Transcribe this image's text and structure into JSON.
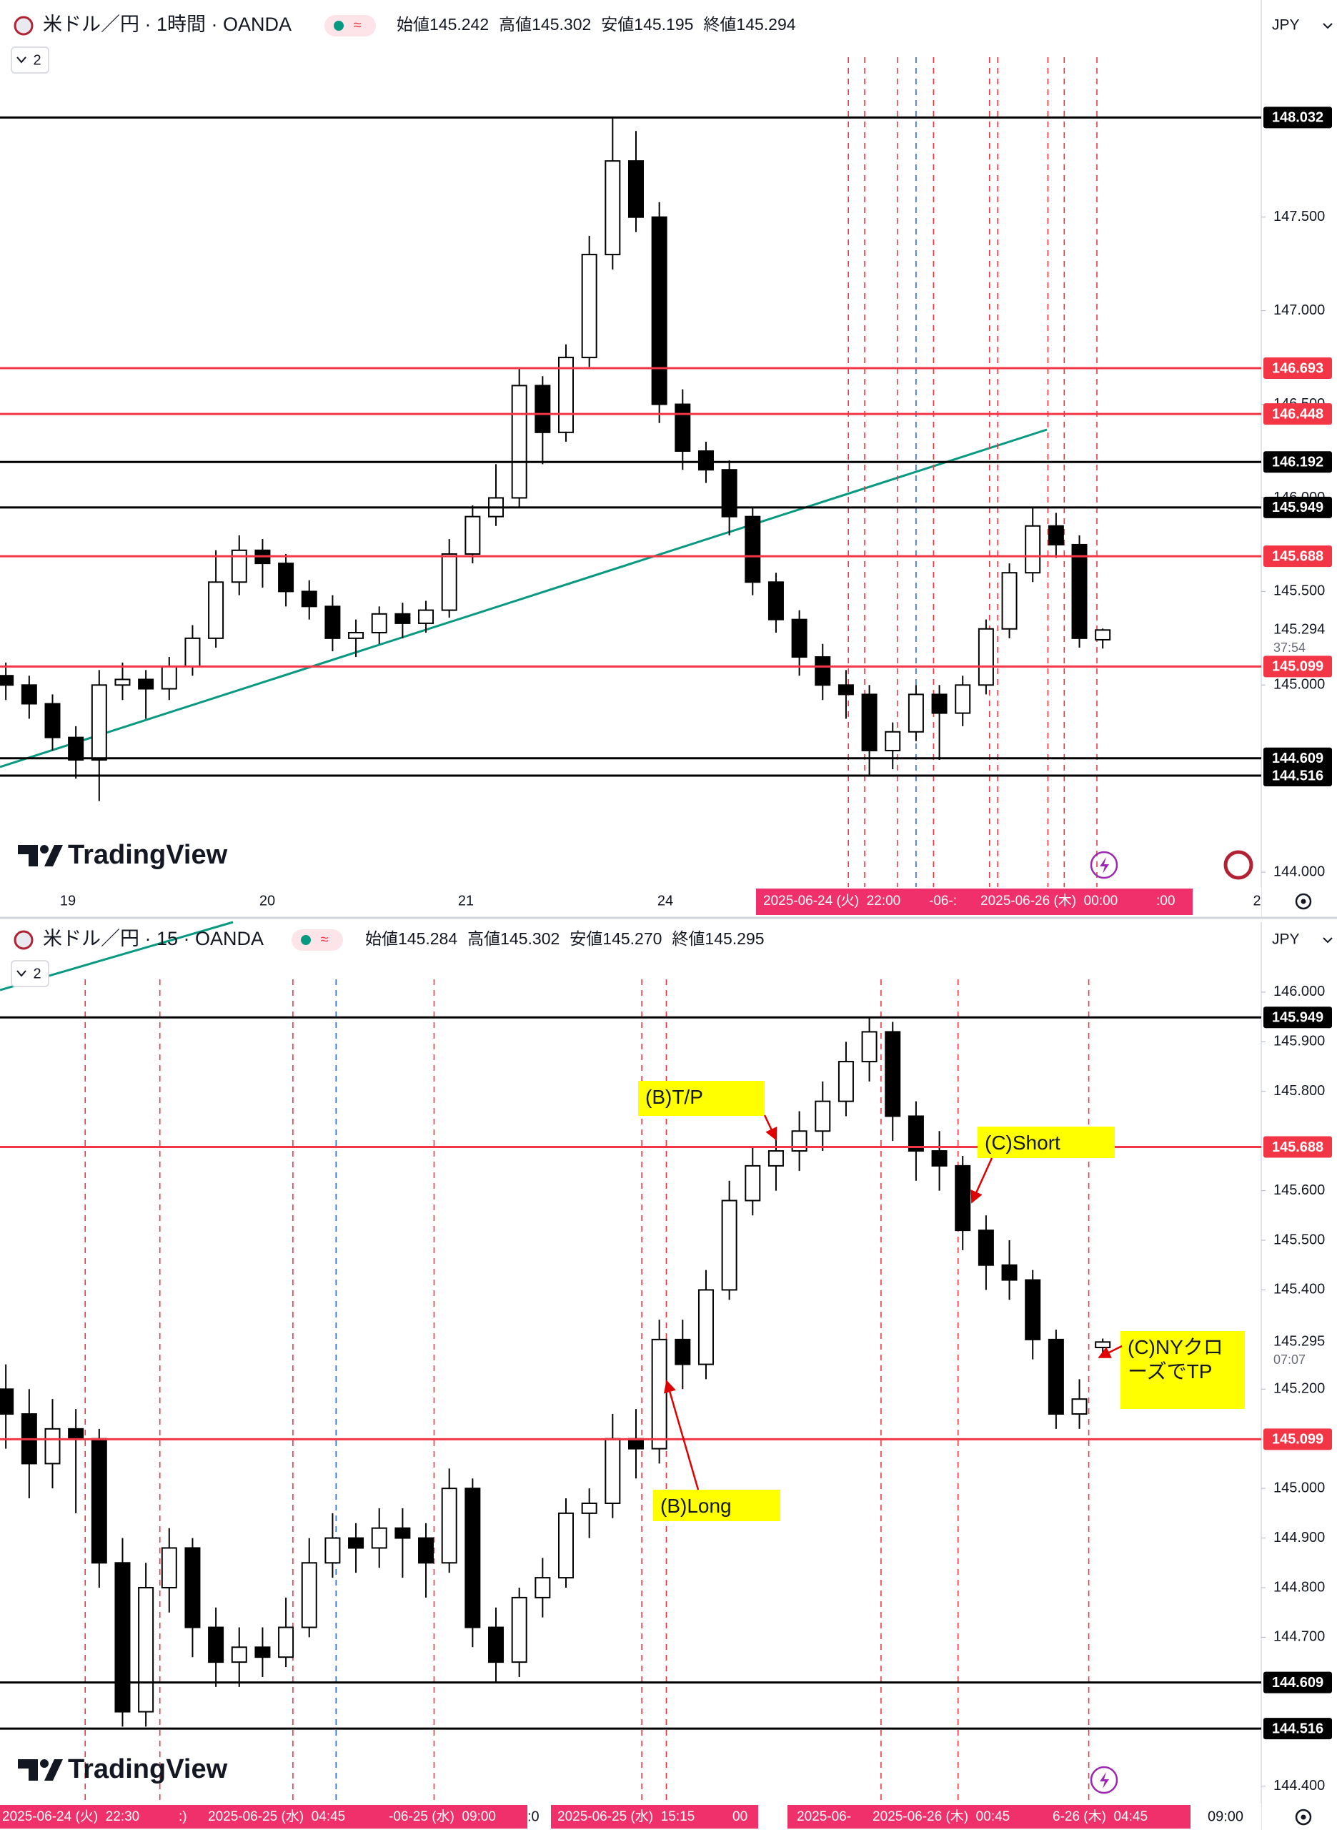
{
  "chart_data": [
    {
      "type": "candlestick",
      "symbol": "米ドル／円 · 1時間 · OANDA",
      "ohlc_labels": [
        "始値",
        "高値",
        "安値",
        "終値"
      ],
      "last_labels": [
        "145.242",
        "145.302",
        "145.195",
        "145.294"
      ],
      "countdown": "37:54",
      "indicator_count": "2",
      "currency": "JPY",
      "watermark": "TradingView",
      "ylim": [
        143.97,
        148.66
      ],
      "yticks": [
        {
          "value": 144,
          "label": "144.000"
        },
        {
          "value": 145,
          "label": "145.000"
        },
        {
          "value": 145.5,
          "label": "145.500"
        },
        {
          "value": 146,
          "label": "146.000"
        },
        {
          "value": 146.5,
          "label": "146.500"
        },
        {
          "value": 147,
          "label": "147.000"
        },
        {
          "value": 147.5,
          "label": "147.500"
        }
      ],
      "levels": [
        {
          "value": 148.032,
          "color": "#000000"
        },
        {
          "value": 146.693,
          "color": "#f23645"
        },
        {
          "value": 146.448,
          "color": "#f23645"
        },
        {
          "value": 146.192,
          "color": "#000000"
        },
        {
          "value": 145.949,
          "color": "#000000"
        },
        {
          "value": 145.688,
          "color": "#f23645"
        },
        {
          "value": 145.099,
          "color": "#f23645"
        },
        {
          "value": 144.609,
          "color": "#000000"
        },
        {
          "value": 144.516,
          "color": "#000000"
        }
      ],
      "x_labels": [
        "19",
        "20",
        "21",
        "24",
        "2"
      ],
      "time_highlights": [
        "2025-06-24 (火)  22:00",
        "-06-:",
        "2025-06-26 (木)  00:00",
        ":00"
      ],
      "candles": {
        "open": [
          145.05,
          145.0,
          144.9,
          144.72,
          144.6,
          145.0,
          145.03,
          144.98,
          145.1,
          145.25,
          145.55,
          145.72,
          145.65,
          145.5,
          145.42,
          145.25,
          145.28,
          145.38,
          145.33,
          145.4,
          145.7,
          145.9,
          146.0,
          146.6,
          146.35,
          146.75,
          147.3,
          147.8,
          147.5,
          146.5,
          146.25,
          146.15,
          145.9,
          145.55,
          145.35,
          145.15,
          145.0,
          144.95,
          144.65,
          144.75,
          144.95,
          144.85,
          145.0,
          145.3,
          145.6,
          145.85,
          145.75,
          145.242
        ],
        "high": [
          145.12,
          145.05,
          144.95,
          144.78,
          145.08,
          145.12,
          145.08,
          145.15,
          145.32,
          145.72,
          145.8,
          145.78,
          145.7,
          145.56,
          145.48,
          145.35,
          145.42,
          145.44,
          145.45,
          145.78,
          145.96,
          146.18,
          146.69,
          146.65,
          146.82,
          147.4,
          148.03,
          147.96,
          147.58,
          146.58,
          146.3,
          146.2,
          145.95,
          145.6,
          145.4,
          145.22,
          145.08,
          145.0,
          144.8,
          145.0,
          145.0,
          145.05,
          145.35,
          145.65,
          145.95,
          145.92,
          145.8,
          145.302
        ],
        "low": [
          144.92,
          144.82,
          144.65,
          144.5,
          144.38,
          144.92,
          144.82,
          144.92,
          145.05,
          145.2,
          145.48,
          145.52,
          145.42,
          145.35,
          145.18,
          145.15,
          145.22,
          145.25,
          145.28,
          145.36,
          145.65,
          145.85,
          145.95,
          146.18,
          146.3,
          146.7,
          147.22,
          147.42,
          146.4,
          146.15,
          146.08,
          145.8,
          145.48,
          145.28,
          145.05,
          144.92,
          144.82,
          144.52,
          144.55,
          144.7,
          144.6,
          144.78,
          144.95,
          145.25,
          145.55,
          145.68,
          145.2,
          145.195
        ],
        "close": [
          145.0,
          144.9,
          144.72,
          144.6,
          145.0,
          145.03,
          144.98,
          145.1,
          145.25,
          145.55,
          145.72,
          145.65,
          145.5,
          145.42,
          145.25,
          145.28,
          145.38,
          145.33,
          145.4,
          145.7,
          145.9,
          146.0,
          146.6,
          146.35,
          146.75,
          147.3,
          147.8,
          147.5,
          146.5,
          146.25,
          146.15,
          145.9,
          145.55,
          145.35,
          145.15,
          145.0,
          144.95,
          144.65,
          144.75,
          144.95,
          144.85,
          145.0,
          145.3,
          145.6,
          145.85,
          145.75,
          145.25,
          145.294
        ]
      }
    },
    {
      "type": "candlestick",
      "symbol": "米ドル／円 · 15 · OANDA",
      "ohlc_labels": [
        "始値",
        "高値",
        "安値",
        "終値"
      ],
      "last_labels": [
        "145.284",
        "145.302",
        "145.270",
        "145.295"
      ],
      "countdown": "07:07",
      "indicator_count": "2",
      "currency": "JPY",
      "watermark": "TradingView",
      "ylim": [
        144.365,
        146.141
      ],
      "yticks": [
        {
          "value": 144.4,
          "label": "144.400"
        },
        {
          "value": 144.7,
          "label": "144.700"
        },
        {
          "value": 144.8,
          "label": "144.800"
        },
        {
          "value": 144.9,
          "label": "144.900"
        },
        {
          "value": 145,
          "label": "145.000"
        },
        {
          "value": 145.2,
          "label": "145.200"
        },
        {
          "value": 145.4,
          "label": "145.400"
        },
        {
          "value": 145.5,
          "label": "145.500"
        },
        {
          "value": 145.6,
          "label": "145.600"
        },
        {
          "value": 145.8,
          "label": "145.800"
        },
        {
          "value": 145.9,
          "label": "145.900"
        },
        {
          "value": 146,
          "label": "146.000"
        }
      ],
      "levels": [
        {
          "value": 145.949,
          "color": "#000000"
        },
        {
          "value": 145.688,
          "color": "#f23645"
        },
        {
          "value": 145.099,
          "color": "#f23645"
        },
        {
          "value": 144.609,
          "color": "#000000"
        },
        {
          "value": 144.516,
          "color": "#000000"
        }
      ],
      "x_labels": [
        ":0",
        "09:00"
      ],
      "time_highlights": [
        "2025-06-24 (火)  22:30",
        ":)",
        "2025-06-25 (水)  04:45",
        "-06-25 (水)  09:00",
        "2025-06-25 (水)  15:15",
        "00",
        "2025-06-",
        "2025-06-26 (木)  00:45",
        "6-26 (木)  04:45"
      ],
      "annotations": [
        "(B)T/P",
        "(C)Short",
        "(C)NYクローズでTP",
        "(B)Long"
      ],
      "candles": {
        "open": [
          145.2,
          145.15,
          145.05,
          145.12,
          145.1,
          144.85,
          144.55,
          144.8,
          144.88,
          144.72,
          144.65,
          144.68,
          144.66,
          144.72,
          144.85,
          144.9,
          144.88,
          144.92,
          144.9,
          144.85,
          145.0,
          144.72,
          144.65,
          144.78,
          144.82,
          144.95,
          144.97,
          145.1,
          145.08,
          145.3,
          145.25,
          145.4,
          145.58,
          145.65,
          145.68,
          145.72,
          145.78,
          145.86,
          145.92,
          145.75,
          145.68,
          145.65,
          145.52,
          145.45,
          145.42,
          145.3,
          145.15,
          145.284
        ],
        "high": [
          145.25,
          145.2,
          145.18,
          145.16,
          145.12,
          144.9,
          144.85,
          144.92,
          144.9,
          144.76,
          144.72,
          144.72,
          144.78,
          144.9,
          144.95,
          144.93,
          144.96,
          144.96,
          144.93,
          145.04,
          145.02,
          144.76,
          144.8,
          144.86,
          144.98,
          145.0,
          145.15,
          145.16,
          145.34,
          145.34,
          145.44,
          145.62,
          145.69,
          145.72,
          145.76,
          145.82,
          145.9,
          145.95,
          145.94,
          145.78,
          145.72,
          145.67,
          145.55,
          145.5,
          145.44,
          145.32,
          145.22,
          145.302
        ],
        "low": [
          145.08,
          144.98,
          145.0,
          144.95,
          144.8,
          144.52,
          144.52,
          144.75,
          144.66,
          144.6,
          144.6,
          144.62,
          144.64,
          144.7,
          144.82,
          144.83,
          144.84,
          144.82,
          144.78,
          144.83,
          144.68,
          144.61,
          144.62,
          144.74,
          144.8,
          144.9,
          144.94,
          145.02,
          145.05,
          145.2,
          145.22,
          145.38,
          145.55,
          145.6,
          145.64,
          145.68,
          145.75,
          145.82,
          145.7,
          145.62,
          145.6,
          145.48,
          145.4,
          145.38,
          145.26,
          145.12,
          145.12,
          145.27
        ],
        "close": [
          145.15,
          145.05,
          145.12,
          145.1,
          144.85,
          144.55,
          144.8,
          144.88,
          144.72,
          144.65,
          144.68,
          144.66,
          144.72,
          144.85,
          144.9,
          144.88,
          144.92,
          144.9,
          144.85,
          145.0,
          144.72,
          144.65,
          144.78,
          144.82,
          144.95,
          144.97,
          145.1,
          145.08,
          145.3,
          145.25,
          145.4,
          145.58,
          145.65,
          145.68,
          145.72,
          145.78,
          145.86,
          145.92,
          145.75,
          145.68,
          145.65,
          145.52,
          145.45,
          145.42,
          145.3,
          145.15,
          145.18,
          145.295
        ]
      }
    }
  ]
}
